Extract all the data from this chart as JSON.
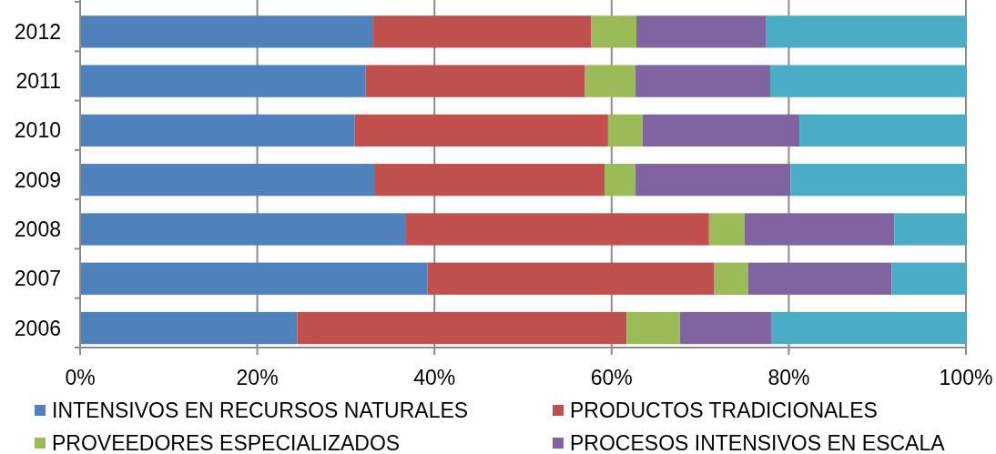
{
  "chart_data": {
    "type": "bar",
    "orientation": "horizontal",
    "stacked": true,
    "categories": [
      "2012",
      "2011",
      "2010",
      "2009",
      "2008",
      "2007",
      "2006"
    ],
    "series": [
      {
        "name": "INTENSIVOS EN RECURSOS NATURALES",
        "color": "#4f81bd",
        "values": [
          33.1,
          32.2,
          31.0,
          33.3,
          36.7,
          39.2,
          24.5
        ]
      },
      {
        "name": "PRODUCTOS TRADICIONALES",
        "color": "#c0504d",
        "values": [
          24.6,
          24.8,
          28.6,
          25.9,
          34.3,
          32.4,
          37.2
        ]
      },
      {
        "name": "PROVEEDORES ESPECIALIZADOS",
        "color": "#9bbb59",
        "values": [
          5.1,
          5.7,
          3.9,
          3.5,
          4.0,
          3.8,
          6.0
        ]
      },
      {
        "name": "PROCESOS INTENSIVOS EN ESCALA",
        "color": "#8064a2",
        "values": [
          14.6,
          15.2,
          17.7,
          17.5,
          16.9,
          16.2,
          10.3
        ]
      },
      {
        "color": "#4bacc6",
        "values": [
          22.6,
          22.1,
          18.8,
          19.8,
          8.1,
          8.4,
          22.0
        ]
      }
    ],
    "xlim": [
      0,
      100
    ],
    "xticks": [
      {
        "value": 0,
        "label": "0%"
      },
      {
        "value": 20,
        "label": "20%"
      },
      {
        "value": 40,
        "label": "40%"
      },
      {
        "value": 60,
        "label": "60%"
      },
      {
        "value": 80,
        "label": "80%"
      },
      {
        "value": 100,
        "label": "100%"
      }
    ],
    "grid": "x",
    "legend": "bottom"
  }
}
